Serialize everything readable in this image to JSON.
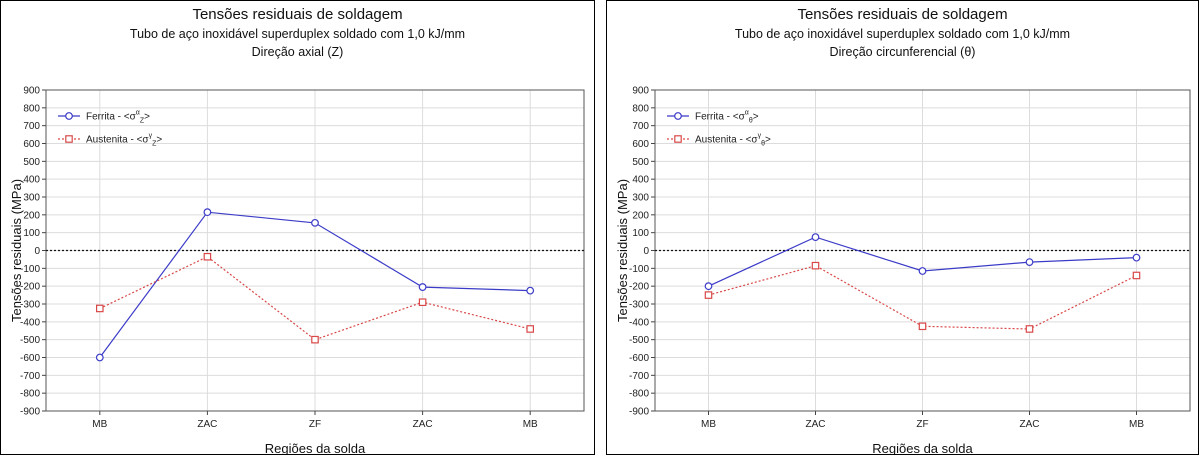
{
  "chart_data": [
    {
      "type": "line",
      "title": "Tensões residuais de soldagem",
      "subtitle": "Tubo de aço inoxidável superduplex soldado com 1,0 kJ/mm",
      "direction": "Direção axial (Z)",
      "xlabel": "Regiões da solda",
      "ylabel": "Tensões residuais (MPa)",
      "categories": [
        "MB",
        "ZAC",
        "ZF",
        "ZAC",
        "MB"
      ],
      "ylim": [
        -900,
        900
      ],
      "yticks": [
        900,
        800,
        700,
        600,
        500,
        400,
        300,
        200,
        100,
        0,
        -100,
        -200,
        -300,
        -400,
        -500,
        -600,
        -700,
        -800,
        -900
      ],
      "grid": true,
      "legend_position": "top-left",
      "zero_line": "dotted",
      "series": [
        {
          "name": "Ferrita",
          "legend": {
            "prefix": "Ferrita  - <σ",
            "sup": "α",
            "sub": "Z",
            "suffix": ">"
          },
          "color": "#3b3bc8",
          "marker": "circle",
          "line": "solid",
          "values": [
            -600,
            215,
            155,
            -205,
            -225
          ]
        },
        {
          "name": "Austenita",
          "legend": {
            "prefix": "Austenita  - <σ",
            "sup": "γ",
            "sub": "Z",
            "suffix": ">"
          },
          "color": "#d94848",
          "marker": "square",
          "line": "dotted",
          "values": [
            -325,
            -35,
            -500,
            -290,
            -440
          ]
        }
      ]
    },
    {
      "type": "line",
      "title": "Tensões residuais de soldagem",
      "subtitle": "Tubo de aço inoxidável superduplex soldado com 1,0 kJ/mm",
      "direction": "Direção circunferencial (θ)",
      "xlabel": "Regiões da solda",
      "ylabel": "Tensões residuais (MPa)",
      "categories": [
        "MB",
        "ZAC",
        "ZF",
        "ZAC",
        "MB"
      ],
      "ylim": [
        -900,
        900
      ],
      "yticks": [
        900,
        800,
        700,
        600,
        500,
        400,
        300,
        200,
        100,
        0,
        -100,
        -200,
        -300,
        -400,
        -500,
        -600,
        -700,
        -800,
        -900
      ],
      "grid": true,
      "legend_position": "top-left",
      "zero_line": "dotted",
      "series": [
        {
          "name": "Ferrita",
          "legend": {
            "prefix": "Ferrita  - <σ",
            "sup": "α",
            "sub": "θ",
            "suffix": ">"
          },
          "color": "#3b3bc8",
          "marker": "circle",
          "line": "solid",
          "values": [
            -200,
            75,
            -115,
            -65,
            -40
          ]
        },
        {
          "name": "Austenita",
          "legend": {
            "prefix": "Austenita  - <σ",
            "sup": "γ",
            "sub": "θ",
            "suffix": ">"
          },
          "color": "#d94848",
          "marker": "square",
          "line": "dotted",
          "values": [
            -250,
            -85,
            -425,
            -440,
            -140
          ]
        }
      ]
    }
  ]
}
